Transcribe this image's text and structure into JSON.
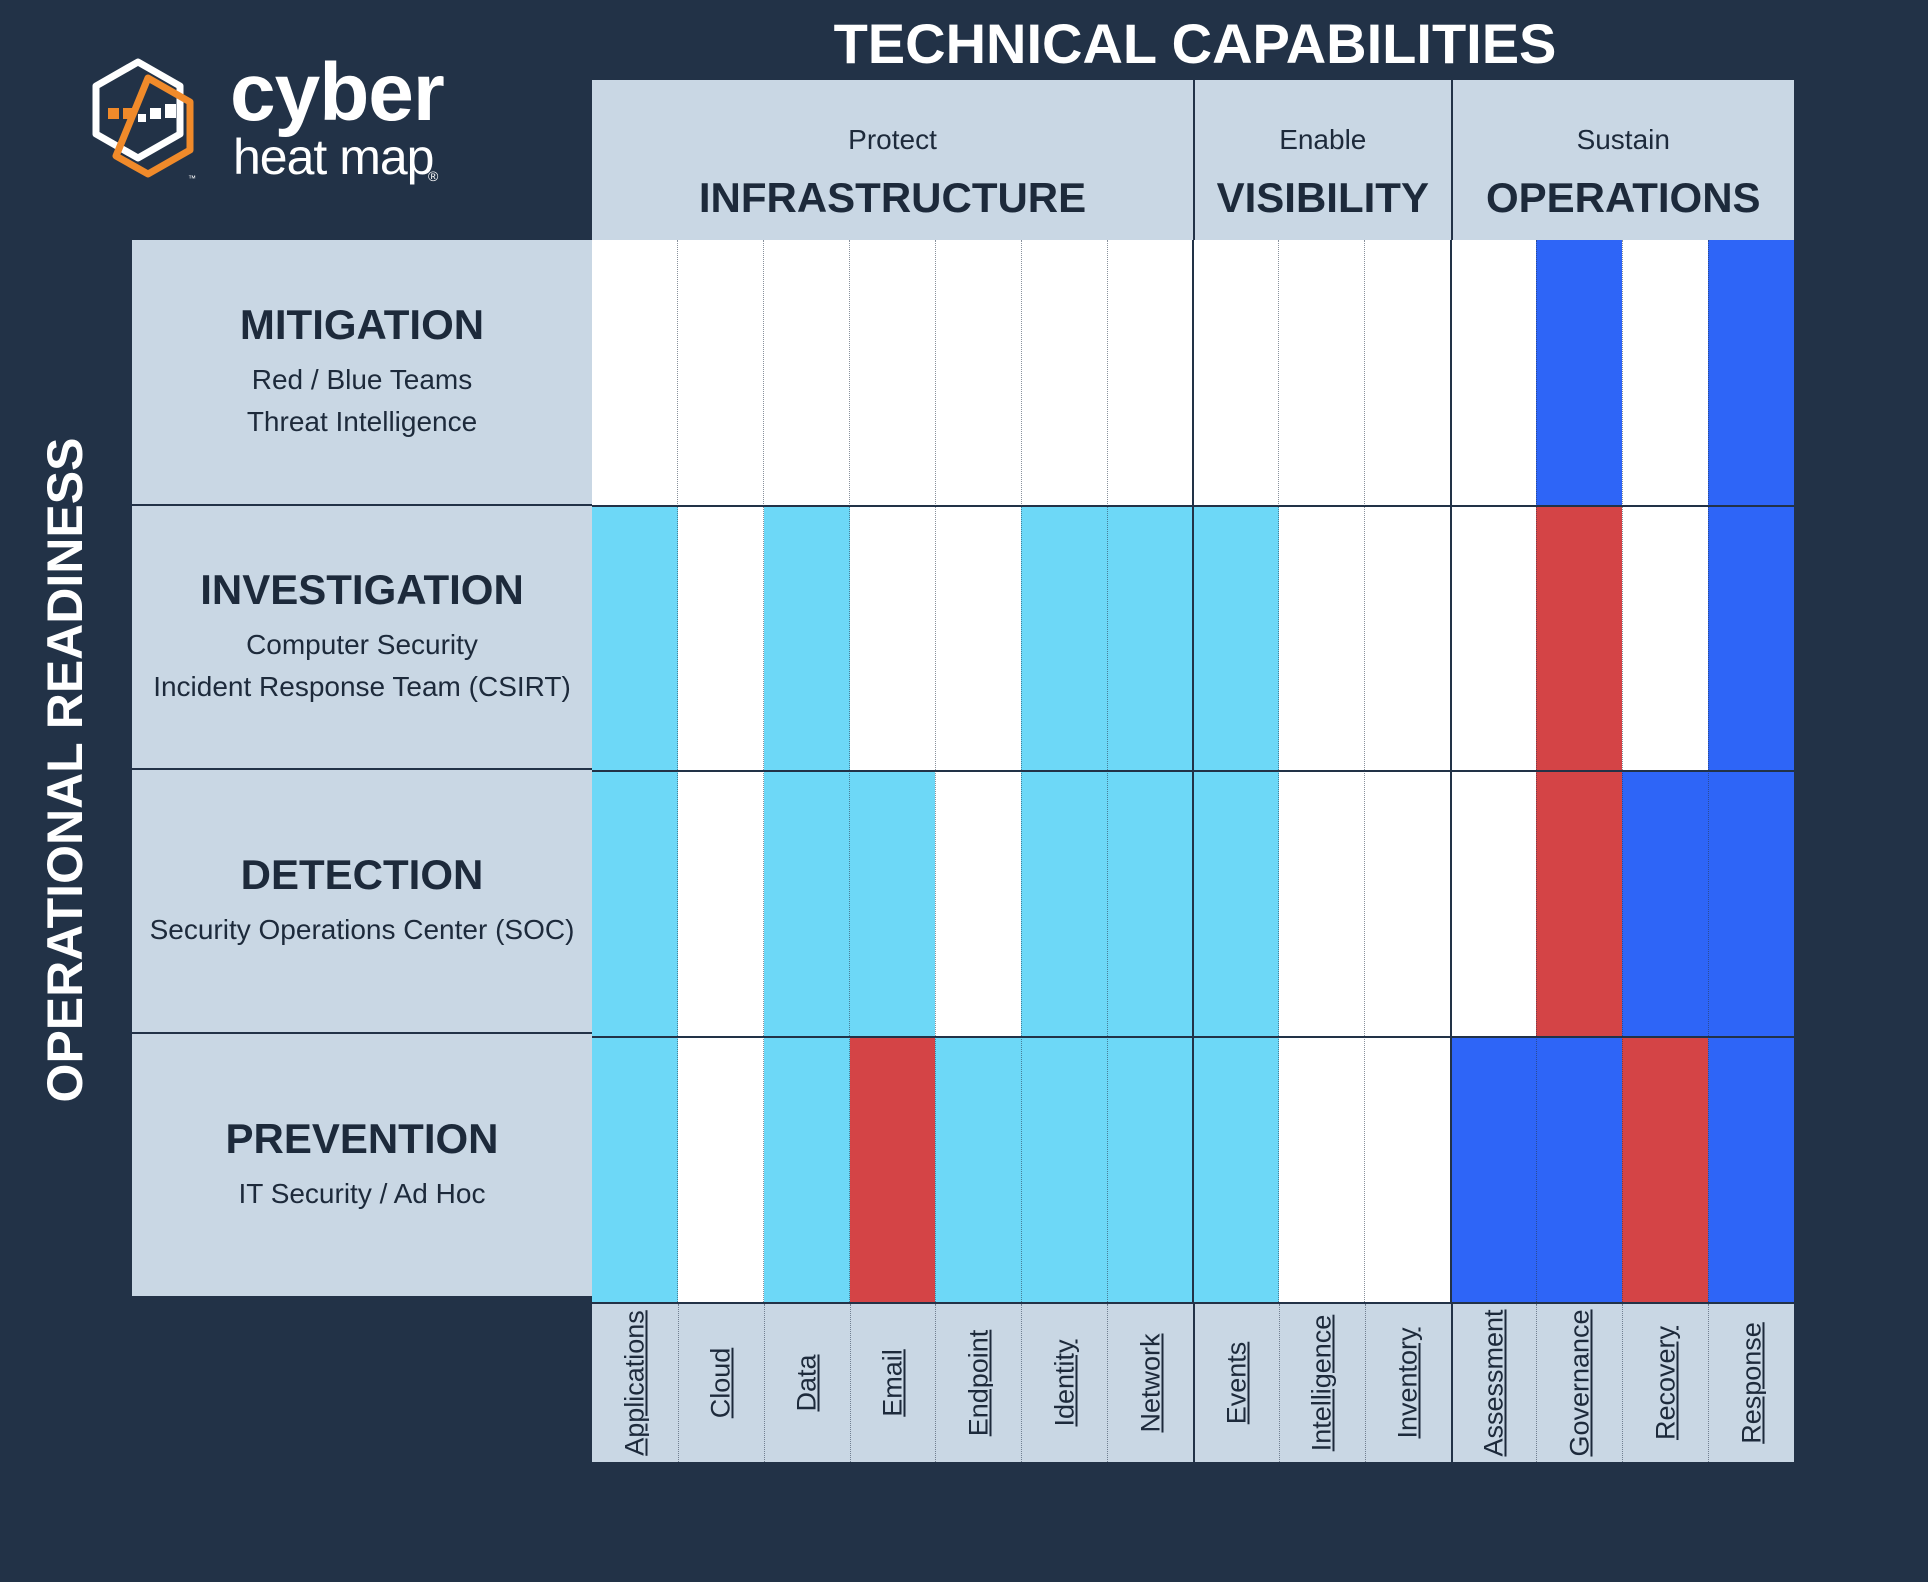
{
  "logo": {
    "line1": "cyber",
    "line2": "heat map",
    "registered": "®",
    "trademark": "™"
  },
  "chart_data": {
    "type": "heatmap",
    "title": "TECHNICAL CAPABILITIES",
    "y_axis_title": "OPERATIONAL READINESS",
    "groups": [
      {
        "verb": "Protect",
        "name": "INFRASTRUCTURE",
        "columns": 7
      },
      {
        "verb": "Enable",
        "name": "VISIBILITY",
        "columns": 3
      },
      {
        "verb": "Sustain",
        "name": "OPERATIONS",
        "columns": 4
      }
    ],
    "columns": [
      "Applications",
      "Cloud",
      "Data",
      "Email",
      "Endpoint",
      "Identity",
      "Network",
      "Events",
      "Intelligence",
      "Inventory",
      "Assessment",
      "Governance",
      "Recovery",
      "Response"
    ],
    "rows": [
      {
        "title": "MITIGATION",
        "subtitle": [
          "Red / Blue Teams",
          "Threat Intelligence"
        ]
      },
      {
        "title": "INVESTIGATION",
        "subtitle": [
          "Computer Security",
          "Incident Response Team (CSIRT)"
        ]
      },
      {
        "title": "DETECTION",
        "subtitle": [
          "Security Operations Center (SOC)"
        ]
      },
      {
        "title": "PREVENTION",
        "subtitle": [
          "IT Security / Ad Hoc"
        ]
      }
    ],
    "cells": [
      [
        "none",
        "none",
        "none",
        "none",
        "none",
        "none",
        "none",
        "none",
        "none",
        "none",
        "none",
        "blue",
        "none",
        "blue"
      ],
      [
        "cyan",
        "none",
        "cyan",
        "none",
        "none",
        "cyan",
        "cyan",
        "cyan",
        "none",
        "none",
        "none",
        "red",
        "none",
        "blue"
      ],
      [
        "cyan",
        "none",
        "cyan",
        "cyan",
        "none",
        "cyan",
        "cyan",
        "cyan",
        "none",
        "none",
        "none",
        "red",
        "blue",
        "blue"
      ],
      [
        "cyan",
        "none",
        "cyan",
        "red",
        "cyan",
        "cyan",
        "cyan",
        "cyan",
        "none",
        "none",
        "blue",
        "blue",
        "red",
        "blue"
      ]
    ],
    "colors": {
      "none": "#ffffff",
      "cyan": "#6dd8f7",
      "blue": "#2e65f7",
      "red": "#d44446"
    },
    "header_fill": "#c9d7e4",
    "background": "#223247"
  }
}
